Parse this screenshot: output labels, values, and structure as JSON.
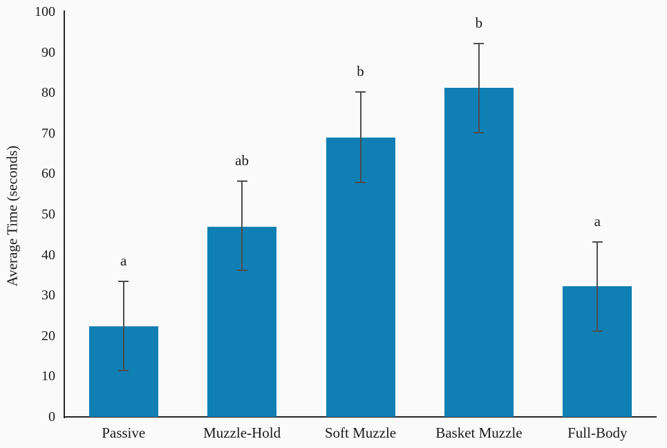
{
  "chart_data": {
    "type": "bar",
    "title": "",
    "xlabel": "",
    "ylabel": "Average Time (seconds)",
    "categories": [
      "Passive",
      "Muzzle-Hold",
      "Soft Muzzle",
      "Basket Muzzle",
      "Full-Body"
    ],
    "values": [
      22.4,
      47.0,
      69.0,
      81.3,
      32.2
    ],
    "error_bars": {
      "upper": [
        33.4,
        58.2,
        80.2,
        92.2,
        43.2
      ],
      "lower": [
        11.4,
        36.2,
        57.8,
        70.2,
        21.2
      ]
    },
    "significance_labels": [
      "a",
      "ab",
      "b",
      "b",
      "a"
    ],
    "ylim": [
      0,
      100
    ],
    "yticks": [
      0,
      10,
      20,
      30,
      40,
      50,
      60,
      70,
      80,
      90,
      100
    ],
    "grid": false,
    "legend": false,
    "colors": {
      "bar": "#0f7fb4",
      "error_bar": "#4d4d4d",
      "axis": "#262626",
      "text": "#1a1a1a",
      "background": "#fafafa"
    }
  }
}
